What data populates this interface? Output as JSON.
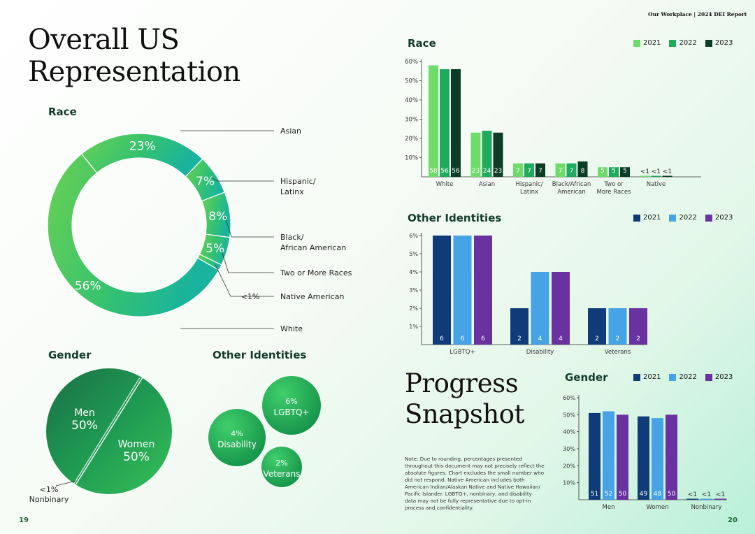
{
  "header": "Our Workplace | 2024 DEI Report",
  "page_left": "19",
  "page_right": "20",
  "left": {
    "title_line1": "Overall US",
    "title_line2": "Representation",
    "race_title": "Race",
    "gender_title": "Gender",
    "other_title": "Other Identities"
  },
  "snapshot": {
    "title_line1": "Progress",
    "title_line2": "Snapshot",
    "note": "Note: Due to rounding, percentages presented throughout this document may not precisely reflect the absolute figures. Chart excludes the small number who did not respond. Native American includes both American Indian/Alaskan Native and Native Hawaiian/ Pacific Islander. LGBTQ+, nonbinary, and disability data may not be fully representative due to opt-in process and confidentiality."
  },
  "legend_race": {
    "y2021": "2021",
    "y2022": "2022",
    "y2023": "2023"
  },
  "legend_other": {
    "y2021": "2021",
    "y2022": "2022",
    "y2023": "2023"
  },
  "legend_gender": {
    "y2021": "2021",
    "y2022": "2022",
    "y2023": "2023"
  },
  "colors": {
    "race": [
      "#6ddc6a",
      "#1faa5d",
      "#0d3d24"
    ],
    "identity": [
      "#0f3c78",
      "#45a3e6",
      "#6a31a0"
    ],
    "donut_green": "#3fc26a",
    "donut_teal": "#1bb59a"
  },
  "chart_data": [
    {
      "type": "pie",
      "title": "Race",
      "categories": [
        "Asian",
        "Hispanic/ Latinx",
        "Black/ African American",
        "Two or More Races",
        "Native American",
        "White"
      ],
      "values": [
        23,
        7,
        8,
        5,
        1,
        56
      ],
      "labels": [
        "23%",
        "7%",
        "8%",
        "5%",
        "<1%",
        "56%"
      ]
    },
    {
      "type": "pie",
      "title": "Gender",
      "categories": [
        "Men",
        "Women",
        "Nonbinary"
      ],
      "values": [
        50,
        50,
        0.5
      ],
      "labels": [
        "50%",
        "50%",
        "<1%"
      ]
    },
    {
      "type": "bubble",
      "title": "Other Identities",
      "categories": [
        "LGBTQ+",
        "Disability",
        "Veterans"
      ],
      "values": [
        6,
        4,
        2
      ],
      "labels": [
        "6%",
        "4%",
        "2%"
      ]
    },
    {
      "type": "bar",
      "title": "Race",
      "categories": [
        "White",
        "Asian",
        "Hispanic/ Latinx",
        "Black/African American",
        "Two or More Races",
        "Native"
      ],
      "series": [
        {
          "name": "2021",
          "values": [
            58,
            23,
            7,
            7,
            5,
            0.5
          ],
          "labels": [
            "58",
            "23",
            "7",
            "7",
            "5",
            "<1"
          ]
        },
        {
          "name": "2022",
          "values": [
            56,
            24,
            7,
            7,
            5,
            0.5
          ],
          "labels": [
            "56",
            "24",
            "7",
            "7",
            "5",
            "<1"
          ]
        },
        {
          "name": "2023",
          "values": [
            56,
            23,
            7,
            8,
            5,
            0.5
          ],
          "labels": [
            "56",
            "23",
            "7",
            "8",
            "5",
            "<1"
          ]
        }
      ],
      "yticks": [
        "10%",
        "20%",
        "30%",
        "40%",
        "50%",
        "60%"
      ],
      "ylim": [
        0,
        60
      ]
    },
    {
      "type": "bar",
      "title": "Other Identities",
      "categories": [
        "LGBTQ+",
        "Disability",
        "Veterans"
      ],
      "series": [
        {
          "name": "2021",
          "values": [
            6,
            2,
            2
          ],
          "labels": [
            "6",
            "2",
            "2"
          ]
        },
        {
          "name": "2022",
          "values": [
            6,
            4,
            2
          ],
          "labels": [
            "6",
            "4",
            "2"
          ]
        },
        {
          "name": "2023",
          "values": [
            6,
            4,
            2
          ],
          "labels": [
            "6",
            "4",
            "2"
          ]
        }
      ],
      "yticks": [
        "1%",
        "2%",
        "3%",
        "4%",
        "5%",
        "6%"
      ],
      "ylim": [
        0,
        6
      ]
    },
    {
      "type": "bar",
      "title": "Gender",
      "categories": [
        "Men",
        "Women",
        "Nonbinary"
      ],
      "series": [
        {
          "name": "2021",
          "values": [
            51,
            49,
            0.3
          ],
          "labels": [
            "51",
            "49",
            "<1"
          ]
        },
        {
          "name": "2022",
          "values": [
            52,
            48,
            0.3
          ],
          "labels": [
            "52",
            "48",
            "<1"
          ]
        },
        {
          "name": "2023",
          "values": [
            50,
            50,
            0.3
          ],
          "labels": [
            "50",
            "50",
            "<1"
          ]
        }
      ],
      "yticks": [
        "10%",
        "20%",
        "30%",
        "40%",
        "50%",
        "60%"
      ],
      "ylim": [
        0,
        60
      ]
    }
  ]
}
